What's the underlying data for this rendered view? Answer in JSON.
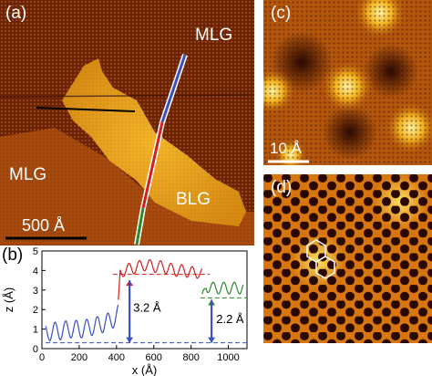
{
  "panel_a": {
    "tag": "(a)",
    "labels": {
      "mlg_top": "MLG",
      "mlg_left": "MLG",
      "blg": "BLG"
    },
    "scalebar": "500 Å"
  },
  "panel_c": {
    "tag": "(c)",
    "scalebar": "10 Å"
  },
  "panel_d": {
    "tag": "(d)"
  },
  "panel_b": {
    "tag": "(b)",
    "annot_32": "3.2 Å",
    "annot_22": "2.2 Å"
  },
  "chart_data": {
    "type": "line",
    "xlabel": "x (Å)",
    "ylabel": "z (Å)",
    "xlim": [
      0,
      1100
    ],
    "ylim": [
      0,
      5
    ],
    "xticks": [
      0,
      200,
      400,
      600,
      800,
      1000
    ],
    "yticks": [
      0,
      1,
      2,
      3,
      4,
      5
    ],
    "series": [
      {
        "color": "#3a4fc4",
        "x": [
          20,
          60,
          100,
          140,
          180,
          220,
          260,
          300,
          340,
          380,
          400,
          410
        ],
        "y": [
          0.8,
          0.9,
          0.9,
          1.0,
          1.0,
          1.0,
          1.1,
          1.2,
          1.3,
          1.5,
          1.6,
          1.8
        ]
      },
      {
        "color": "#d02020",
        "x": [
          410,
          420,
          440,
          480,
          520,
          560,
          600,
          640,
          680,
          720,
          760,
          800,
          840,
          860
        ],
        "y": [
          2.2,
          3.9,
          4.0,
          4.1,
          4.2,
          4.3,
          4.2,
          4.2,
          4.1,
          4.0,
          4.0,
          3.9,
          3.9,
          3.8
        ]
      },
      {
        "color": "#2a8a2a",
        "x": [
          860,
          880,
          920,
          960,
          1000,
          1040,
          1080
        ],
        "y": [
          2.5,
          3.2,
          3.1,
          3.1,
          3.1,
          3.1,
          3.1
        ]
      }
    ],
    "reference_levels": [
      {
        "color": "#d02020",
        "y": 3.8,
        "x_range": [
          380,
          900
        ]
      },
      {
        "color": "#2a8a2a",
        "y": 2.6,
        "x_range": [
          850,
          1100
        ]
      },
      {
        "color": "#3a4fc4",
        "y": 0.3,
        "x_range": [
          20,
          1100
        ]
      }
    ],
    "arrows": [
      {
        "color": "#d02020",
        "x": 470,
        "y_from": 0.3,
        "y_to": 3.5
      },
      {
        "color": "#3a4fc4",
        "x": 470,
        "y_from": 3.5,
        "y_to": 0.3
      },
      {
        "color": "#2a8a2a",
        "x": 910,
        "y_from": 0.3,
        "y_to": 2.5
      },
      {
        "color": "#3a4fc4",
        "x": 910,
        "y_from": 2.5,
        "y_to": 0.3
      }
    ]
  }
}
